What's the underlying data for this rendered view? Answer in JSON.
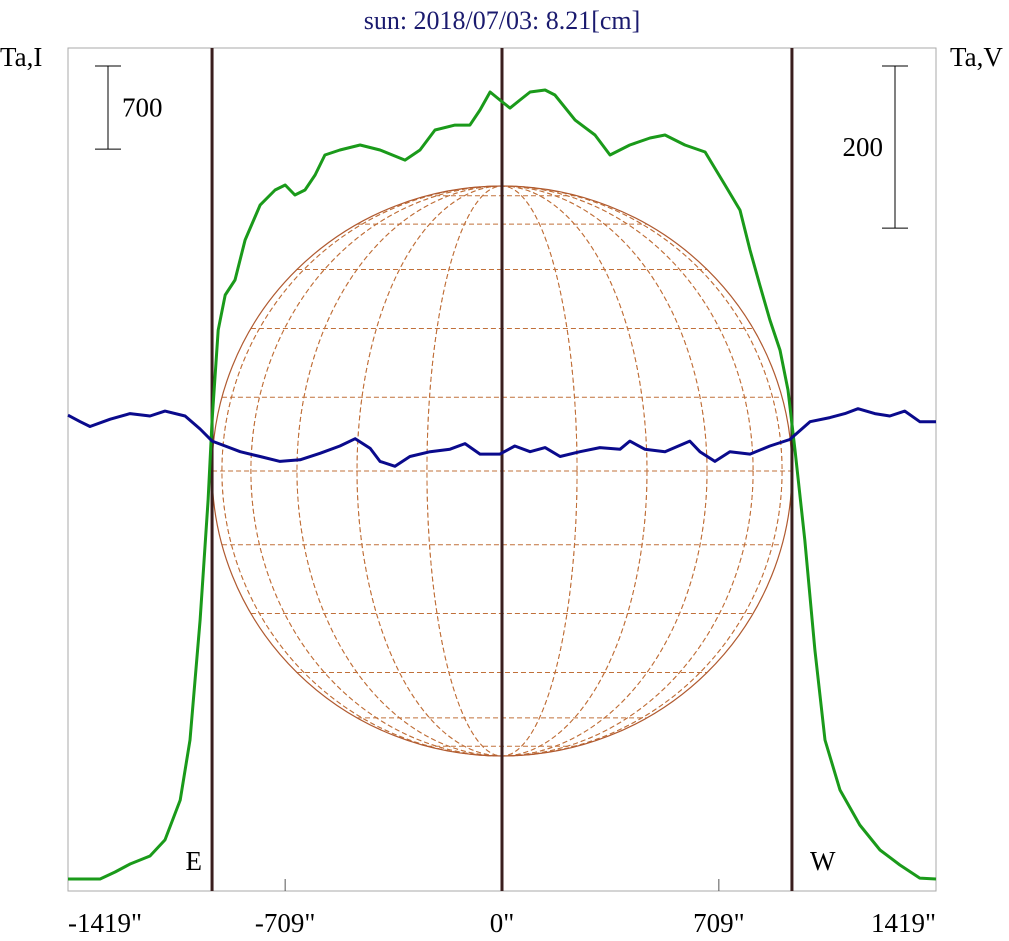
{
  "chart_data": {
    "type": "line",
    "title": "sun: 2018/07/03: 8.21[cm]",
    "ylabel": "Ta,I",
    "y2label": "Ta,V",
    "xlim": [
      -1419,
      1419
    ],
    "xticks": [
      {
        "value": -1419,
        "label": "-1419\""
      },
      {
        "value": -709,
        "label": "-709\""
      },
      {
        "value": 0,
        "label": "0\""
      },
      {
        "value": 709,
        "label": "709\""
      },
      {
        "value": 1419,
        "label": "1419\""
      }
    ],
    "ylim": [
      0,
      7100
    ],
    "y2lim": [
      -580,
      460
    ],
    "scale_bars": [
      {
        "value": 700,
        "axis": "y"
      },
      {
        "value": 200,
        "axis": "y2"
      }
    ],
    "vlines": [
      {
        "value": -948,
        "label": "E"
      },
      {
        "value": 0
      },
      {
        "value": 948,
        "label": "W"
      }
    ],
    "series": [
      {
        "color": "#1a9a1a",
        "axis": "y",
        "x": [
          -1419,
          -1314,
          -1265,
          -1216,
          -1151,
          -1102,
          -1052,
          -1020,
          -987,
          -961,
          -948,
          -928,
          -905,
          -873,
          -840,
          -791,
          -742,
          -709,
          -677,
          -644,
          -611,
          -579,
          -530,
          -464,
          -399,
          -317,
          -268,
          -219,
          -154,
          -105,
          -72,
          -39,
          -7,
          26,
          59,
          92,
          141,
          173,
          239,
          304,
          353,
          418,
          484,
          533,
          598,
          664,
          729,
          778,
          811,
          843,
          876,
          909,
          935,
          958,
          990,
          1023,
          1056,
          1105,
          1170,
          1236,
          1301,
          1366,
          1419
        ],
        "values": [
          101,
          101,
          160,
          227,
          295,
          430,
          766,
          1272,
          2282,
          3293,
          3967,
          4725,
          5020,
          5146,
          5483,
          5777,
          5904,
          5946,
          5862,
          5904,
          6030,
          6199,
          6241,
          6283,
          6241,
          6156,
          6241,
          6409,
          6451,
          6451,
          6578,
          6729,
          6662,
          6594,
          6662,
          6729,
          6746,
          6704,
          6493,
          6367,
          6199,
          6283,
          6342,
          6367,
          6283,
          6224,
          5946,
          5735,
          5399,
          5104,
          4809,
          4556,
          4219,
          3714,
          2956,
          2030,
          1272,
          851,
          556,
          345,
          219,
          109,
          101
        ]
      },
      {
        "color": "#0a0a8c",
        "axis": "y2",
        "x": [
          -1419,
          -1379,
          -1347,
          -1281,
          -1216,
          -1151,
          -1102,
          -1036,
          -987,
          -948,
          -905,
          -856,
          -791,
          -726,
          -660,
          -595,
          -530,
          -480,
          -431,
          -399,
          -350,
          -301,
          -235,
          -170,
          -121,
          -72,
          -7,
          42,
          92,
          141,
          190,
          255,
          320,
          386,
          418,
          467,
          533,
          614,
          647,
          696,
          745,
          811,
          876,
          941,
          1007,
          1072,
          1121,
          1164,
          1219,
          1268,
          1317,
          1366,
          1419
        ],
        "values": [
          7,
          -1,
          -7,
          2,
          9,
          6,
          12,
          6,
          -10,
          -25,
          -31,
          -38,
          -44,
          -50,
          -48,
          -40,
          -31,
          -22,
          -34,
          -50,
          -56,
          -44,
          -38,
          -35,
          -28,
          -41,
          -41,
          -31,
          -38,
          -33,
          -44,
          -38,
          -33,
          -35,
          -25,
          -35,
          -38,
          -25,
          -38,
          -50,
          -38,
          -41,
          -31,
          -23,
          -1,
          4,
          9,
          15,
          9,
          6,
          12,
          -1,
          -1
        ]
      }
    ]
  }
}
